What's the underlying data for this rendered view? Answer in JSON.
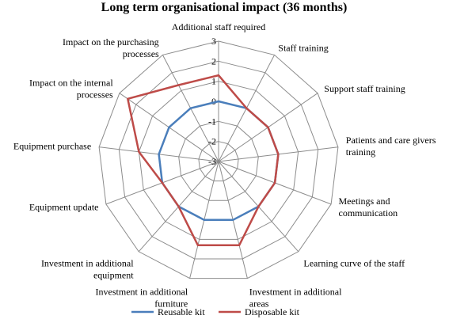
{
  "chart_data": {
    "type": "radar",
    "title": "Long term organisational impact (36 months)",
    "rlim": [
      -3,
      3
    ],
    "ticks": [
      "3",
      "2",
      "1",
      "0",
      "-1",
      "-2",
      "-3"
    ],
    "categories": [
      [
        "Additional staff required"
      ],
      [
        "Staff training"
      ],
      [
        "Support staff training"
      ],
      [
        "Patients and care givers",
        "training"
      ],
      [
        "Meetings and",
        "communication"
      ],
      [
        "Learning curve of the staff"
      ],
      [
        "Investment in additional",
        "areas"
      ],
      [
        "Investment in additional",
        "furniture"
      ],
      [
        "Investment in additional",
        "equipment"
      ],
      [
        "Equipment update"
      ],
      [
        "Equipment purchase"
      ],
      [
        "Impact on the internal",
        "processes"
      ],
      [
        "Impact on the purchasing",
        "processes"
      ]
    ],
    "series": [
      {
        "name": "Reusable kit",
        "color": "#4a7ebb",
        "values": [
          0,
          0,
          0,
          0,
          0,
          0,
          0,
          0,
          0,
          0,
          0,
          0,
          0
        ]
      },
      {
        "name": "Disposable kit",
        "color": "#be4b48",
        "values": [
          1.3,
          0,
          0,
          0,
          0,
          0,
          1.3,
          1.3,
          0,
          0,
          1.0,
          2.5,
          1.3
        ]
      }
    ],
    "legend": "bottom",
    "grid": true
  }
}
